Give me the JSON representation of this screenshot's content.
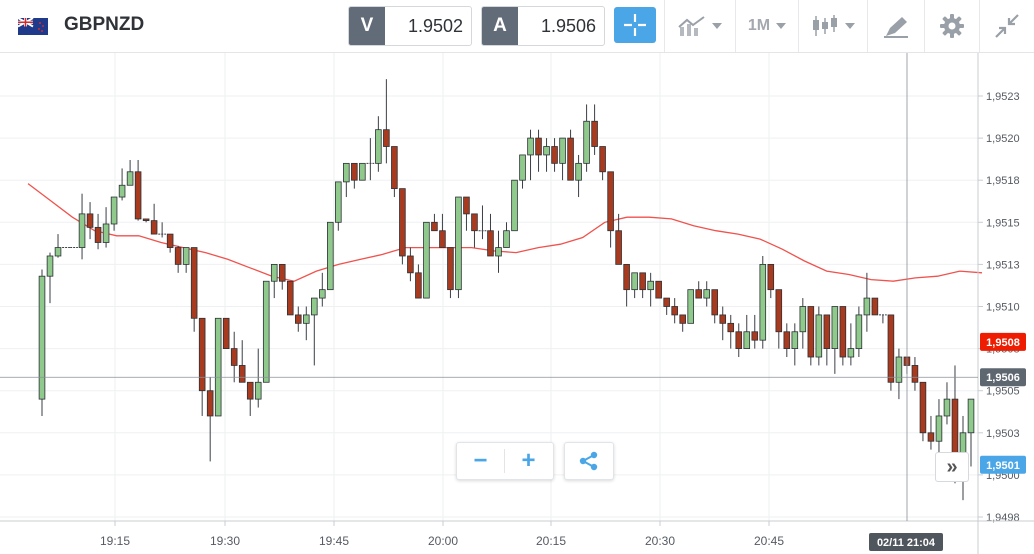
{
  "instrument": {
    "symbol": "GBPNZD",
    "flag": "uk-nz-flag-icon"
  },
  "bid": {
    "tag": "V",
    "value": "1.9502"
  },
  "ask": {
    "tag": "A",
    "value": "1.9506"
  },
  "toolbar": {
    "crosshair": "crosshair-icon",
    "chart_type": "line-chart-icon",
    "timeframe": "1M",
    "candle_type": "candlestick-icon",
    "draw": "draw-pencil-icon",
    "settings": "gear-icon",
    "collapse": "collapse-icon"
  },
  "controls": {
    "zoom_out": "−",
    "zoom_in": "+",
    "share": "share-icon",
    "scroll_right": "»"
  },
  "colors": {
    "accent": "#4aa6e6",
    "up": "#8fc98c",
    "down": "#a83a1f",
    "ma": "#f0524d",
    "ask_badge": "#ee1c00",
    "current_badge": "#5e6670",
    "bid_badge": "#4aa6e6"
  },
  "chart_data": {
    "type": "candlestick",
    "x_ticks": [
      "19:15",
      "19:30",
      "19:45",
      "20:00",
      "20:15",
      "20:30",
      "20:45"
    ],
    "y_ticks": [
      "1,9523",
      "1,9520",
      "1,9518",
      "1,9515",
      "1,9513",
      "1,9510",
      "1,9508",
      "1,9505",
      "1,9503",
      "1,9500",
      "1,9498"
    ],
    "ylim": [
      1.94975,
      1.95253
    ],
    "badges": {
      "ask": {
        "label": "1,9508",
        "value": 1.95084
      },
      "current": {
        "label": "1,9506",
        "value": 1.95063
      },
      "bid": {
        "label": "1,9501",
        "value": 1.95011
      }
    },
    "crosshair_label": "02/11 21:04",
    "ohlc": [
      [
        1.9505,
        1.95127,
        1.9504,
        1.95123
      ],
      [
        1.95123,
        1.95137,
        1.95107,
        1.95135
      ],
      [
        1.95135,
        1.95148,
        1.95134,
        1.9514
      ],
      [
        1.9514,
        1.9514,
        1.9514,
        1.9514
      ],
      [
        1.9514,
        1.9514,
        1.9514,
        1.9514
      ],
      [
        1.9514,
        1.95172,
        1.95133,
        1.9516
      ],
      [
        1.9516,
        1.95167,
        1.95145,
        1.95152
      ],
      [
        1.95152,
        1.9516,
        1.95139,
        1.95143
      ],
      [
        1.95143,
        1.95164,
        1.9514,
        1.95154
      ],
      [
        1.95154,
        1.9517,
        1.9515,
        1.9517
      ],
      [
        1.9517,
        1.95187,
        1.95168,
        1.95177
      ],
      [
        1.95177,
        1.95192,
        1.95177,
        1.95185
      ],
      [
        1.95185,
        1.95192,
        1.95156,
        1.95157
      ],
      [
        1.95157,
        1.95157,
        1.95155,
        1.95156
      ],
      [
        1.95156,
        1.95166,
        1.95148,
        1.95148
      ],
      [
        1.95148,
        1.95155,
        1.95146,
        1.95148
      ],
      [
        1.95148,
        1.95148,
        1.95137,
        1.9514
      ],
      [
        1.9514,
        1.95141,
        1.95125,
        1.9513
      ],
      [
        1.9513,
        1.9514,
        1.95125,
        1.9514
      ],
      [
        1.9514,
        1.9514,
        1.9509,
        1.95098
      ],
      [
        1.95098,
        1.95098,
        1.9504,
        1.95055
      ],
      [
        1.95055,
        1.95063,
        1.95013,
        1.9504
      ],
      [
        1.9504,
        1.95098,
        1.9504,
        1.95098
      ],
      [
        1.95098,
        1.95098,
        1.9508,
        1.9508
      ],
      [
        1.9508,
        1.9509,
        1.9506,
        1.9507
      ],
      [
        1.9507,
        1.95085,
        1.9506,
        1.9506
      ],
      [
        1.9506,
        1.9506,
        1.9504,
        1.9505
      ],
      [
        1.9505,
        1.9508,
        1.95045,
        1.9506
      ],
      [
        1.9506,
        1.9512,
        1.9506,
        1.9512
      ],
      [
        1.9512,
        1.9513,
        1.9511,
        1.9513
      ],
      [
        1.9513,
        1.9513,
        1.95115,
        1.9512
      ],
      [
        1.9512,
        1.9512,
        1.951,
        1.951
      ],
      [
        1.951,
        1.95105,
        1.9509,
        1.95095
      ],
      [
        1.95095,
        1.95105,
        1.95085,
        1.951
      ],
      [
        1.951,
        1.9511,
        1.9507,
        1.9511
      ],
      [
        1.9511,
        1.95125,
        1.95105,
        1.95115
      ],
      [
        1.95115,
        1.95155,
        1.95115,
        1.95155
      ],
      [
        1.95155,
        1.95179,
        1.9515,
        1.95179
      ],
      [
        1.95179,
        1.9519,
        1.9517,
        1.9519
      ],
      [
        1.9519,
        1.9519,
        1.95175,
        1.9518
      ],
      [
        1.9518,
        1.9519,
        1.9518,
        1.9519
      ],
      [
        1.9519,
        1.95205,
        1.9518,
        1.9519
      ],
      [
        1.9519,
        1.95218,
        1.95185,
        1.9521
      ],
      [
        1.9521,
        1.9524,
        1.9519,
        1.952
      ],
      [
        1.952,
        1.952,
        1.9517,
        1.95175
      ],
      [
        1.95175,
        1.95175,
        1.9513,
        1.95135
      ],
      [
        1.95135,
        1.9514,
        1.9512,
        1.95125
      ],
      [
        1.95125,
        1.9513,
        1.9511,
        1.9511
      ],
      [
        1.9511,
        1.95155,
        1.9511,
        1.95155
      ],
      [
        1.95155,
        1.9516,
        1.9515,
        1.9515
      ],
      [
        1.9515,
        1.9516,
        1.9514,
        1.9514
      ],
      [
        1.9514,
        1.9514,
        1.9511,
        1.95115
      ],
      [
        1.95115,
        1.9517,
        1.9511,
        1.9517
      ],
      [
        1.9517,
        1.9517,
        1.9515,
        1.9516
      ],
      [
        1.9516,
        1.9516,
        1.9514,
        1.9515
      ],
      [
        1.9515,
        1.95165,
        1.95145,
        1.9515
      ],
      [
        1.9515,
        1.9516,
        1.95135,
        1.95135
      ],
      [
        1.95135,
        1.9515,
        1.95125,
        1.9514
      ],
      [
        1.9514,
        1.95155,
        1.9514,
        1.9515
      ],
      [
        1.9515,
        1.9518,
        1.9515,
        1.9518
      ],
      [
        1.9518,
        1.95195,
        1.95175,
        1.95195
      ],
      [
        1.95195,
        1.9521,
        1.9518,
        1.95205
      ],
      [
        1.95205,
        1.9521,
        1.95185,
        1.95195
      ],
      [
        1.95195,
        1.95205,
        1.95185,
        1.952
      ],
      [
        1.952,
        1.95205,
        1.95185,
        1.9519
      ],
      [
        1.9519,
        1.95205,
        1.9518,
        1.95205
      ],
      [
        1.95205,
        1.9521,
        1.9518,
        1.9518
      ],
      [
        1.9518,
        1.95195,
        1.9517,
        1.9519
      ],
      [
        1.9519,
        1.95225,
        1.95185,
        1.95215
      ],
      [
        1.95215,
        1.95225,
        1.95195,
        1.952
      ],
      [
        1.952,
        1.952,
        1.9518,
        1.95185
      ],
      [
        1.95185,
        1.95185,
        1.9514,
        1.9515
      ],
      [
        1.9515,
        1.9516,
        1.9513,
        1.9513
      ],
      [
        1.9513,
        1.9513,
        1.95105,
        1.95115
      ],
      [
        1.95115,
        1.95125,
        1.9511,
        1.95125
      ],
      [
        1.95125,
        1.95125,
        1.9511,
        1.95115
      ],
      [
        1.95115,
        1.95125,
        1.95105,
        1.9512
      ],
      [
        1.9512,
        1.9512,
        1.9511,
        1.9511
      ],
      [
        1.9511,
        1.9511,
        1.951,
        1.95105
      ],
      [
        1.95105,
        1.9511,
        1.95095,
        1.951
      ],
      [
        1.951,
        1.951,
        1.9509,
        1.95095
      ],
      [
        1.95095,
        1.95115,
        1.95095,
        1.95115
      ],
      [
        1.95115,
        1.9512,
        1.9511,
        1.9511
      ],
      [
        1.9511,
        1.9512,
        1.95105,
        1.95115
      ],
      [
        1.95115,
        1.95115,
        1.95095,
        1.951
      ],
      [
        1.951,
        1.95105,
        1.95085,
        1.95095
      ],
      [
        1.95095,
        1.951,
        1.9508,
        1.9509
      ],
      [
        1.9509,
        1.95095,
        1.95075,
        1.9508
      ],
      [
        1.9508,
        1.951,
        1.9508,
        1.9509
      ],
      [
        1.9509,
        1.951,
        1.9508,
        1.95085
      ],
      [
        1.95085,
        1.95135,
        1.9508,
        1.9513
      ],
      [
        1.9513,
        1.9513,
        1.9511,
        1.95115
      ],
      [
        1.95115,
        1.95115,
        1.9508,
        1.9509
      ],
      [
        1.9509,
        1.95095,
        1.95075,
        1.9508
      ],
      [
        1.9508,
        1.95095,
        1.9507,
        1.9509
      ],
      [
        1.9509,
        1.9511,
        1.9508,
        1.95105
      ],
      [
        1.95105,
        1.95105,
        1.9507,
        1.95075
      ],
      [
        1.95075,
        1.95105,
        1.9507,
        1.951
      ],
      [
        1.951,
        1.951,
        1.9507,
        1.9508
      ],
      [
        1.9508,
        1.95105,
        1.95065,
        1.95105
      ],
      [
        1.95105,
        1.95105,
        1.9507,
        1.95075
      ],
      [
        1.95075,
        1.95095,
        1.9507,
        1.9508
      ],
      [
        1.9508,
        1.95105,
        1.95075,
        1.951
      ],
      [
        1.951,
        1.95125,
        1.9509,
        1.9511
      ],
      [
        1.9511,
        1.9511,
        1.951,
        1.951
      ],
      [
        1.951,
        1.951,
        1.95095,
        1.951
      ],
      [
        1.951,
        1.951,
        1.95055,
        1.9506
      ],
      [
        1.9506,
        1.9508,
        1.9505,
        1.95075
      ],
      [
        1.95075,
        1.95075,
        1.95065,
        1.9507
      ],
      [
        1.9507,
        1.95075,
        1.95055,
        1.9506
      ],
      [
        1.9506,
        1.9506,
        1.95025,
        1.9503
      ],
      [
        1.9503,
        1.9504,
        1.9502,
        1.95025
      ],
      [
        1.95025,
        1.9505,
        1.95015,
        1.9504
      ],
      [
        1.9504,
        1.9506,
        1.95035,
        1.9505
      ],
      [
        1.9505,
        1.9507,
        1.95,
        1.9501
      ],
      [
        1.9501,
        1.9504,
        1.9499,
        1.9503
      ],
      [
        1.9503,
        1.9505,
        1.9501,
        1.9505
      ]
    ],
    "ma": [
      1.95178,
      1.95168,
      1.95158,
      1.9515,
      1.95147,
      1.95147,
      1.95143,
      1.9514,
      1.95137,
      1.95133,
      1.95128,
      1.95123,
      1.9512,
      1.95126,
      1.9513,
      1.95133,
      1.95136,
      1.9514,
      1.9514,
      1.9514,
      1.9514,
      1.95138,
      1.95137,
      1.9514,
      1.95142,
      1.95146,
      1.95155,
      1.95158,
      1.95158,
      1.95157,
      1.95153,
      1.9515,
      1.95148,
      1.95145,
      1.95139,
      1.95132,
      1.95126,
      1.95124,
      1.95121,
      1.9512,
      1.95122,
      1.95123,
      1.95126,
      1.95125
    ]
  }
}
